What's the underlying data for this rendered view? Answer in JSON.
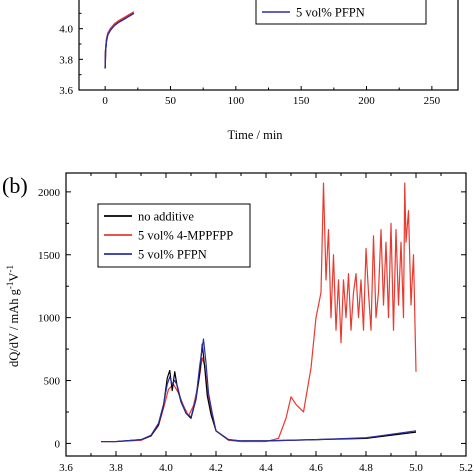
{
  "chart_data": [
    {
      "panel": "a",
      "type": "line",
      "xlabel": "Time / min",
      "xlim": [
        -20,
        270
      ],
      "ylim": [
        3.6,
        4.2
      ],
      "xticks": [
        "0",
        "50",
        "100",
        "150",
        "200",
        "250"
      ],
      "yticks": [
        "3.6",
        "3.8",
        "4.0"
      ],
      "legend": {
        "visible_entries": [
          "5 vol% PFPN"
        ],
        "placement": "top-right"
      },
      "series": [
        {
          "name": "no additive",
          "color": "#000000",
          "x": [
            0,
            0.3,
            1,
            2,
            4,
            7,
            10,
            14,
            18,
            22
          ],
          "y": [
            3.74,
            3.85,
            3.92,
            3.96,
            3.99,
            4.02,
            4.04,
            4.06,
            4.08,
            4.1
          ]
        },
        {
          "name": "5 vol% 4-MPPFPP",
          "color": "#e83a30",
          "x": [
            0,
            0.3,
            1,
            2,
            4,
            7,
            10,
            14,
            18,
            22
          ],
          "y": [
            3.74,
            3.86,
            3.93,
            3.97,
            4.0,
            4.03,
            4.05,
            4.07,
            4.09,
            4.11
          ]
        },
        {
          "name": "5 vol% PFPN",
          "color": "#2b2fa3",
          "x": [
            0,
            0.3,
            1,
            2,
            4,
            7,
            10,
            14,
            18,
            22
          ],
          "y": [
            3.74,
            3.85,
            3.92,
            3.96,
            3.99,
            4.02,
            4.04,
            4.06,
            4.08,
            4.1
          ]
        }
      ]
    },
    {
      "panel": "b",
      "panel_label": "(b)",
      "type": "line",
      "ylabel": "dQ/dV / mAh g",
      "ylabel_sup": "-1",
      "ylabel_mid": "V",
      "xlim": [
        3.6,
        5.2
      ],
      "ylim": [
        -100,
        2150
      ],
      "xticks": [
        "3.6",
        "3.8",
        "4.0",
        "4.2",
        "4.4",
        "4.6",
        "4.8",
        "5.0",
        "5.2"
      ],
      "yticks": [
        "0",
        "500",
        "1000",
        "1500",
        "2000"
      ],
      "legend": {
        "placement": "upper-left"
      },
      "series": [
        {
          "name": "no additive",
          "color": "#000000",
          "x": [
            3.74,
            3.8,
            3.9,
            3.94,
            3.97,
            3.99,
            4.005,
            4.015,
            4.025,
            4.035,
            4.045,
            4.06,
            4.08,
            4.1,
            4.12,
            4.135,
            4.145,
            4.155,
            4.165,
            4.18,
            4.2,
            4.25,
            4.3,
            4.4,
            4.5,
            4.6,
            4.8,
            5.0
          ],
          "y": [
            15,
            15,
            30,
            60,
            150,
            300,
            520,
            580,
            420,
            570,
            450,
            330,
            240,
            200,
            350,
            560,
            790,
            600,
            380,
            230,
            100,
            30,
            20,
            20,
            25,
            30,
            40,
            90
          ]
        },
        {
          "name": "5 vol% 4-MPPFPP",
          "color": "#e83a30",
          "x": [
            3.74,
            3.8,
            3.9,
            3.94,
            3.97,
            3.99,
            4.01,
            4.03,
            4.05,
            4.07,
            4.09,
            4.11,
            4.13,
            4.145,
            4.155,
            4.165,
            4.18,
            4.2,
            4.25,
            4.3,
            4.4,
            4.45,
            4.48,
            4.5,
            4.52,
            4.55,
            4.58,
            4.6,
            4.62,
            4.63,
            4.64,
            4.65,
            4.66,
            4.67,
            4.68,
            4.69,
            4.7,
            4.71,
            4.72,
            4.73,
            4.74,
            4.75,
            4.76,
            4.77,
            4.78,
            4.79,
            4.8,
            4.81,
            4.82,
            4.83,
            4.84,
            4.85,
            4.86,
            4.87,
            4.88,
            4.89,
            4.9,
            4.91,
            4.92,
            4.93,
            4.94,
            4.95,
            4.955,
            4.96,
            4.97,
            4.98,
            4.99,
            5.0
          ],
          "y": [
            15,
            15,
            25,
            60,
            140,
            280,
            430,
            470,
            400,
            300,
            220,
            300,
            480,
            680,
            620,
            420,
            250,
            100,
            25,
            15,
            15,
            40,
            200,
            370,
            310,
            250,
            600,
            1000,
            1200,
            2070,
            1300,
            1700,
            1000,
            1500,
            900,
            1300,
            800,
            1300,
            1000,
            1350,
            900,
            1200,
            1350,
            1000,
            1300,
            900,
            1550,
            1200,
            900,
            1650,
            1000,
            1200,
            1700,
            1100,
            1600,
            1000,
            1750,
            900,
            1700,
            1100,
            1600,
            1000,
            2070,
            1600,
            1850,
            1100,
            1500,
            570
          ]
        },
        {
          "name": "5 vol% PFPN",
          "color": "#2b2fa3",
          "x": [
            3.74,
            3.8,
            3.9,
            3.94,
            3.97,
            3.99,
            4.005,
            4.015,
            4.025,
            4.035,
            4.045,
            4.06,
            4.08,
            4.1,
            4.12,
            4.135,
            4.15,
            4.16,
            4.17,
            4.185,
            4.2,
            4.25,
            4.3,
            4.4,
            4.5,
            4.6,
            4.8,
            5.0
          ],
          "y": [
            15,
            15,
            30,
            65,
            160,
            310,
            470,
            530,
            470,
            500,
            460,
            340,
            240,
            210,
            360,
            620,
            830,
            640,
            400,
            240,
            100,
            30,
            20,
            20,
            25,
            30,
            45,
            100
          ]
        }
      ]
    }
  ]
}
